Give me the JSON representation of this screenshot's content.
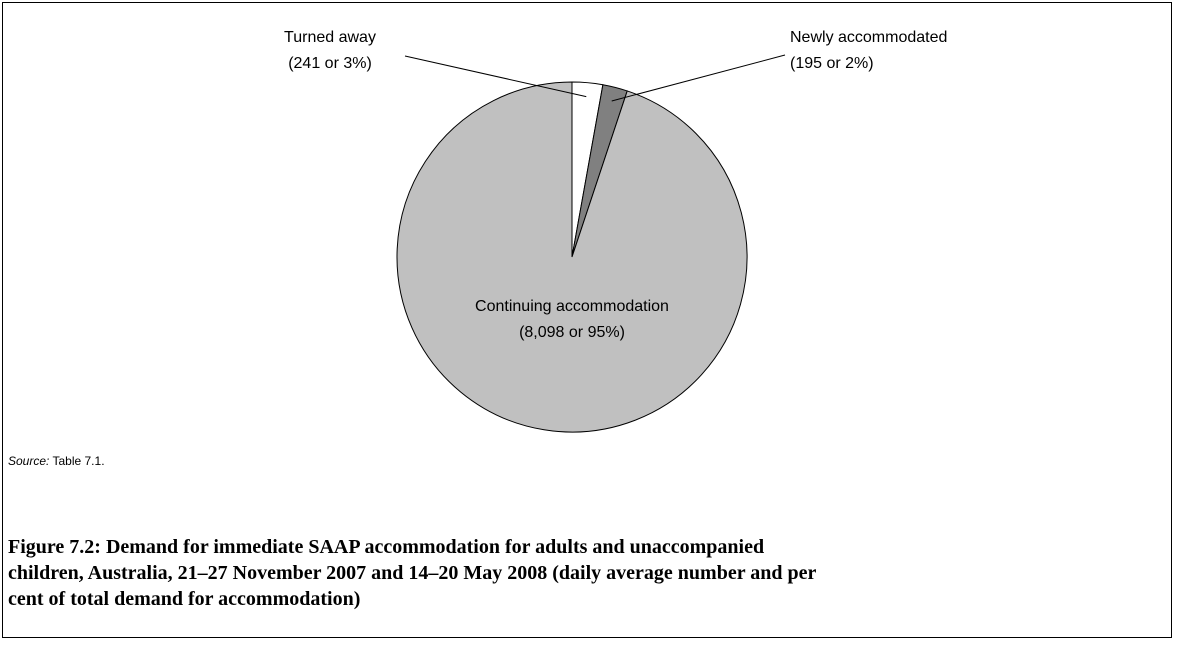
{
  "chart_data": {
    "type": "pie",
    "categories": [
      "Turned away",
      "Newly accommodated",
      "Continuing accommodation"
    ],
    "values": [
      241,
      195,
      8098
    ],
    "value_labels": [
      "(241 or 3%)",
      "(195 or 2%)",
      "(8,098 or 95%)"
    ],
    "colors": [
      "#ffffff",
      "#808080",
      "#c0c0c0"
    ],
    "source_label": "Source:",
    "source": "Table 7.1.",
    "caption": [
      "Figure 7.2: Demand for immediate SAAP accommodation for adults and unaccompanied",
      "children, Australia, 21–27 November 2007 and 14–20 May 2008 (daily average number and per",
      "cent of total demand for accommodation)"
    ]
  }
}
